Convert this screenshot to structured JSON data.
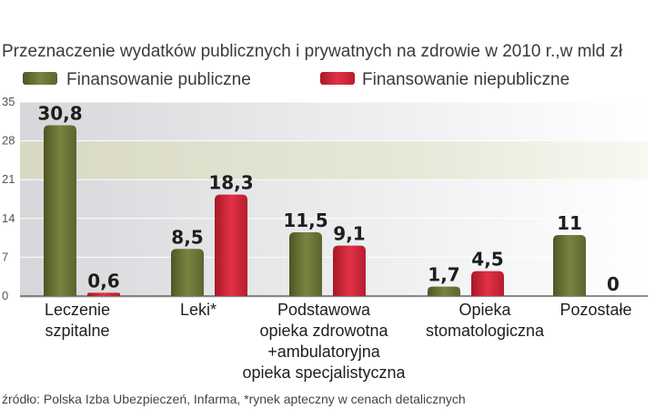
{
  "chart_data": {
    "type": "bar",
    "title": "Przeznaczenie wydatków publicznych i prywatnych na zdrowie w 2010 r.,w mld zł",
    "categories": [
      [
        "Leczenie",
        "szpitalne"
      ],
      [
        "Leki*"
      ],
      [
        "Podstawowa",
        "opieka zdrowotna",
        "+ambulatoryjna",
        "opieka specjalistyczna"
      ],
      [
        "Opieka",
        "stomatologiczna"
      ],
      [
        "Pozostałe"
      ]
    ],
    "series": [
      {
        "name": "Finansowanie publiczne",
        "values": [
          30.8,
          8.5,
          11.5,
          1.7,
          11
        ],
        "labels": [
          "30,8",
          "8,5",
          "11,5",
          "1,7",
          "11"
        ]
      },
      {
        "name": "Finansowanie niepubliczne",
        "values": [
          0.6,
          18.3,
          9.1,
          4.5,
          0
        ],
        "labels": [
          "0,6",
          "18,3",
          "9,1",
          "4,5",
          "0"
        ]
      }
    ],
    "yticks": [
      "0",
      "7",
      "14",
      "21",
      "28",
      "35"
    ],
    "ylim": [
      0,
      35
    ],
    "legend_position": "top-left",
    "colors": {
      "public": "#6b7336",
      "private": "#cc2536"
    }
  },
  "footer": {
    "source": "źródło: Polska Izba Ubezpieczeń, Infarma, *rynek apteczny w cenach detalicznych"
  }
}
